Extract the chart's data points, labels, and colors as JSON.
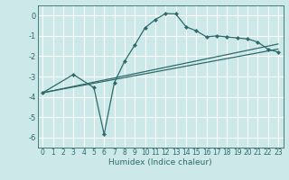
{
  "xlabel": "Humidex (Indice chaleur)",
  "bg_color": "#cce8e8",
  "grid_color": "#ffffff",
  "line_color": "#2d6b6b",
  "xlim": [
    -0.5,
    23.5
  ],
  "ylim": [
    -6.5,
    0.5
  ],
  "yticks": [
    0,
    -1,
    -2,
    -3,
    -4,
    -5,
    -6
  ],
  "xticks": [
    0,
    1,
    2,
    3,
    4,
    5,
    6,
    7,
    8,
    9,
    10,
    11,
    12,
    13,
    14,
    15,
    16,
    17,
    18,
    19,
    20,
    21,
    22,
    23
  ],
  "curve_x": [
    0,
    3,
    5,
    6,
    7,
    8,
    9,
    10,
    11,
    12,
    13,
    14,
    15,
    16,
    17,
    18,
    19,
    20,
    21,
    22,
    23
  ],
  "curve_y": [
    -3.8,
    -2.9,
    -3.55,
    -5.85,
    -3.3,
    -2.25,
    -1.45,
    -0.6,
    -0.2,
    0.1,
    0.08,
    -0.55,
    -0.75,
    -1.05,
    -1.0,
    -1.05,
    -1.1,
    -1.15,
    -1.3,
    -1.65,
    -1.8
  ],
  "line1_x": [
    0,
    23
  ],
  "line1_y": [
    -3.8,
    -1.65
  ],
  "line2_x": [
    0,
    23
  ],
  "line2_y": [
    -3.8,
    -1.4
  ],
  "tick_fontsize": 5.5,
  "xlabel_fontsize": 6.5
}
